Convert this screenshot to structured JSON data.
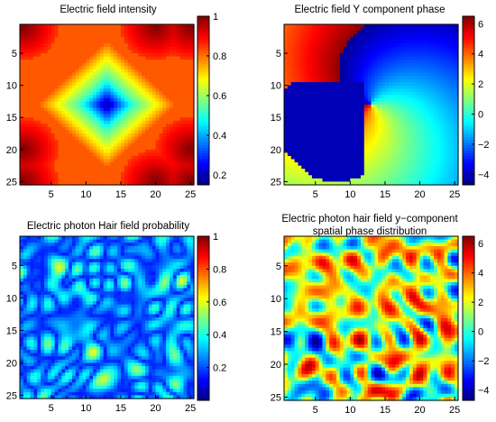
{
  "chart_data": [
    {
      "type": "heatmap",
      "title": "Electric field intensity",
      "title_lines": [
        "Electric field intensity"
      ],
      "xlabel": "",
      "ylabel": "",
      "x_ticks": [
        5,
        10,
        15,
        20,
        25
      ],
      "y_ticks": [
        5,
        10,
        15,
        20,
        25
      ],
      "xlim": [
        0.5,
        25.5
      ],
      "ylim": [
        0.5,
        25.5
      ],
      "y_reversed": true,
      "colorbar": {
        "ticks": [
          0.2,
          0.4,
          0.6,
          0.8,
          1
        ],
        "tick_labels": [
          "0.2",
          "0.4",
          "0.6",
          "0.8",
          "1"
        ],
        "range": [
          0.15,
          1.0
        ]
      },
      "colormap": "jet",
      "pattern": "ring",
      "description_values": {
        "center": [
          13,
          13
        ],
        "center_value": 0.17,
        "ring_value": 0.82,
        "corner_value": 1.0
      }
    },
    {
      "type": "heatmap",
      "title": "Electric field Y component phase",
      "title_lines": [
        "Electric field Y component phase"
      ],
      "xlabel": "",
      "ylabel": "",
      "x_ticks": [
        5,
        10,
        15,
        20,
        25
      ],
      "y_ticks": [
        5,
        10,
        15,
        20,
        25
      ],
      "xlim": [
        0.5,
        25.5
      ],
      "ylim": [
        0.5,
        25.5
      ],
      "y_reversed": true,
      "colorbar": {
        "ticks": [
          -4,
          -2,
          0,
          2,
          4,
          6
        ],
        "tick_labels": [
          "−4",
          "−2",
          "0",
          "2",
          "4",
          "6"
        ],
        "range": [
          -4.7,
          6.5
        ]
      },
      "colormap": "jet",
      "pattern": "vortex",
      "description_values": {
        "center": [
          13,
          13
        ],
        "min": -4.5,
        "max": 6.3
      }
    },
    {
      "type": "heatmap",
      "title": "Electric photon Hair field probability",
      "title_lines": [
        "Electric photon Hair field probability"
      ],
      "xlabel": "",
      "ylabel": "",
      "x_ticks": [
        5,
        10,
        15,
        20,
        25
      ],
      "y_ticks": [
        5,
        10,
        15,
        20,
        25
      ],
      "xlim": [
        0.5,
        25.5
      ],
      "ylim": [
        0.5,
        25.5
      ],
      "y_reversed": true,
      "colorbar": {
        "ticks": [
          0.2,
          0.4,
          0.6,
          0.8,
          1
        ],
        "tick_labels": [
          "0.2",
          "0.4",
          "0.6",
          "0.8",
          "1"
        ],
        "range": [
          0.0,
          1.0
        ]
      },
      "colormap": "jet",
      "pattern": "speckle-low",
      "description_values": {
        "typical_min": 0.15,
        "typical_max": 0.6
      }
    },
    {
      "type": "heatmap",
      "title": "Electric photon hair field y−component spatial phase distribution",
      "title_lines": [
        "Electric photon hair field y−component",
        "spatial phase distribution"
      ],
      "xlabel": "",
      "ylabel": "",
      "x_ticks": [
        5,
        10,
        15,
        20,
        25
      ],
      "y_ticks": [
        5,
        10,
        15,
        20,
        25
      ],
      "xlim": [
        0.5,
        25.5
      ],
      "ylim": [
        0.5,
        25.5
      ],
      "y_reversed": true,
      "colorbar": {
        "ticks": [
          -4,
          -2,
          0,
          2,
          4,
          6
        ],
        "tick_labels": [
          "−4",
          "−2",
          "0",
          "2",
          "4",
          "6"
        ],
        "range": [
          -4.7,
          6.5
        ]
      },
      "colormap": "jet",
      "pattern": "speckle-full",
      "description_values": {
        "min": -4.5,
        "max": 6.3
      }
    }
  ]
}
